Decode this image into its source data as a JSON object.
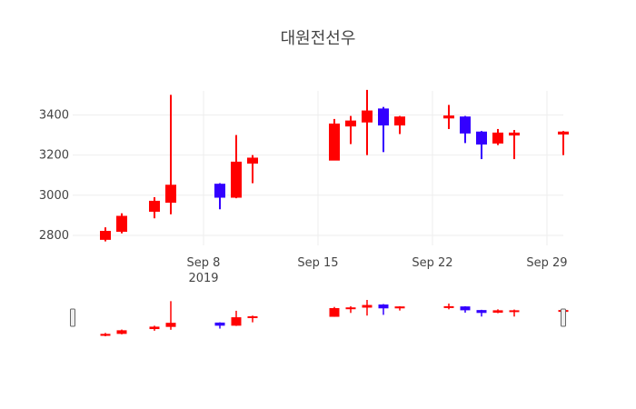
{
  "chart_data": {
    "type": "candlestick",
    "title": "대원전선우",
    "increasing_color": "#ff0000",
    "decreasing_color": "#3300ff",
    "ylim": [
      2750,
      3520
    ],
    "y_ticks": [
      2800,
      3000,
      3200,
      3400
    ],
    "x_range": [
      "2019-08-31",
      "2019-09-30"
    ],
    "x_ticks": [
      {
        "date": "2019-09-08",
        "label": "Sep 8",
        "sublabel": "2019"
      },
      {
        "date": "2019-09-15",
        "label": "Sep 15",
        "sublabel": ""
      },
      {
        "date": "2019-09-22",
        "label": "Sep 22",
        "sublabel": ""
      },
      {
        "date": "2019-09-29",
        "label": "Sep 29",
        "sublabel": ""
      }
    ],
    "grid": true,
    "rangeslider": true,
    "candles": [
      {
        "date": "2019-09-02",
        "open": 2780,
        "high": 2840,
        "low": 2770,
        "close": 2820
      },
      {
        "date": "2019-09-03",
        "open": 2820,
        "high": 2910,
        "low": 2810,
        "close": 2895
      },
      {
        "date": "2019-09-05",
        "open": 2920,
        "high": 2990,
        "low": 2885,
        "close": 2970
      },
      {
        "date": "2019-09-06",
        "open": 2965,
        "high": 3500,
        "low": 2905,
        "close": 3050
      },
      {
        "date": "2019-09-09",
        "open": 3055,
        "high": 3060,
        "low": 2930,
        "close": 2990
      },
      {
        "date": "2019-09-10",
        "open": 2990,
        "high": 3300,
        "low": 2985,
        "close": 3165
      },
      {
        "date": "2019-09-11",
        "open": 3160,
        "high": 3200,
        "low": 3060,
        "close": 3185
      },
      {
        "date": "2019-09-16",
        "open": 3175,
        "high": 3380,
        "low": 3175,
        "close": 3355
      },
      {
        "date": "2019-09-17",
        "open": 3345,
        "high": 3395,
        "low": 3255,
        "close": 3370
      },
      {
        "date": "2019-09-18",
        "open": 3365,
        "high": 3525,
        "low": 3200,
        "close": 3420
      },
      {
        "date": "2019-09-19",
        "open": 3430,
        "high": 3440,
        "low": 3215,
        "close": 3350
      },
      {
        "date": "2019-09-20",
        "open": 3350,
        "high": 3395,
        "low": 3305,
        "close": 3390
      },
      {
        "date": "2019-09-23",
        "open": 3385,
        "high": 3450,
        "low": 3330,
        "close": 3395
      },
      {
        "date": "2019-09-24",
        "open": 3390,
        "high": 3395,
        "low": 3260,
        "close": 3310
      },
      {
        "date": "2019-09-25",
        "open": 3315,
        "high": 3320,
        "low": 3180,
        "close": 3255
      },
      {
        "date": "2019-09-26",
        "open": 3260,
        "high": 3330,
        "low": 3250,
        "close": 3310
      },
      {
        "date": "2019-09-27",
        "open": 3300,
        "high": 3325,
        "low": 3180,
        "close": 3310
      },
      {
        "date": "2019-09-30",
        "open": 3305,
        "high": 3320,
        "low": 3200,
        "close": 3315
      }
    ]
  }
}
